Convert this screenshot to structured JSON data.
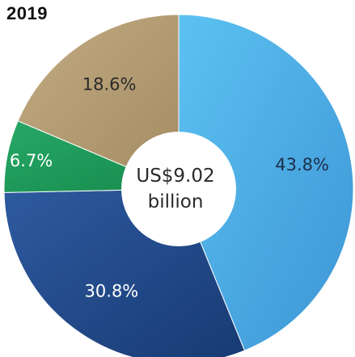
{
  "chart_data": {
    "type": "pie",
    "title": "2019",
    "center_label": {
      "line1": "US$9.02",
      "line2": "billion"
    },
    "slices": [
      {
        "label": "43.8%",
        "value": 43.8,
        "color": "#4aaee3",
        "label_color": "#1d2f4a"
      },
      {
        "label": "30.8%",
        "value": 30.8,
        "color": "#244a8e",
        "label_color": "#ffffff"
      },
      {
        "label": "6.7%",
        "value": 6.7,
        "color": "#1f9a5a",
        "label_color": "#ffffff"
      },
      {
        "label": "18.6%",
        "value": 18.6,
        "color": "#b39c73",
        "label_color": "#2a2a2a"
      }
    ]
  }
}
